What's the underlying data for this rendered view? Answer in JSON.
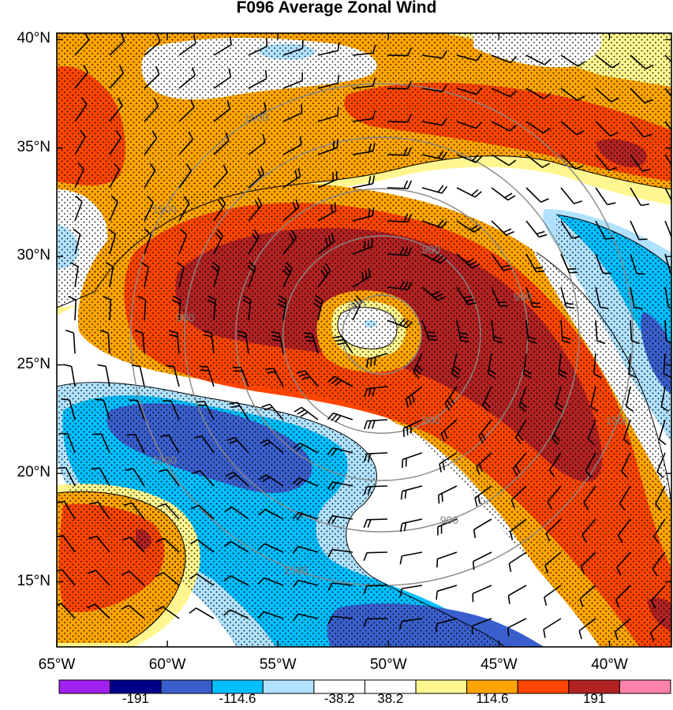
{
  "title": "F096 Average Zonal Wind",
  "latitude_labels": [
    {
      "text": "40°N",
      "lat": 40
    },
    {
      "text": "35°N",
      "lat": 35
    },
    {
      "text": "30°N",
      "lat": 30
    },
    {
      "text": "25°N",
      "lat": 25
    },
    {
      "text": "20°N",
      "lat": 20
    },
    {
      "text": "15°N",
      "lat": 15
    }
  ],
  "longitude_labels": [
    {
      "text": "65°W",
      "lon": -65
    },
    {
      "text": "60°W",
      "lon": -60
    },
    {
      "text": "55°W",
      "lon": -55
    },
    {
      "text": "50°W",
      "lon": -50
    },
    {
      "text": "45°W",
      "lon": -45
    },
    {
      "text": "40°W",
      "lon": -40
    }
  ],
  "map_extent": {
    "lon_min": -65,
    "lon_max": -37.2,
    "lat_min": 12.0,
    "lat_max": 40.3
  },
  "colorbar": {
    "colors": [
      "#a020f0",
      "#00008b",
      "#3a5fcd",
      "#00bfff",
      "#b0e2ff",
      "#ffffff",
      "#ffffff",
      "#fff68f",
      "#ffa500",
      "#ff4500",
      "#b22222",
      "#ff82ab"
    ],
    "labels": [
      "-191",
      "-114.6",
      "-38.2",
      "38.2",
      "114.6",
      "191"
    ]
  },
  "range_ring_labels": [
    "1500",
    "1500",
    "900",
    "300",
    "900",
    "900",
    "900",
    "900",
    "1500",
    "1500",
    "1500"
  ],
  "storm_center": {
    "lon": -50.3,
    "lat": 26.4
  }
}
